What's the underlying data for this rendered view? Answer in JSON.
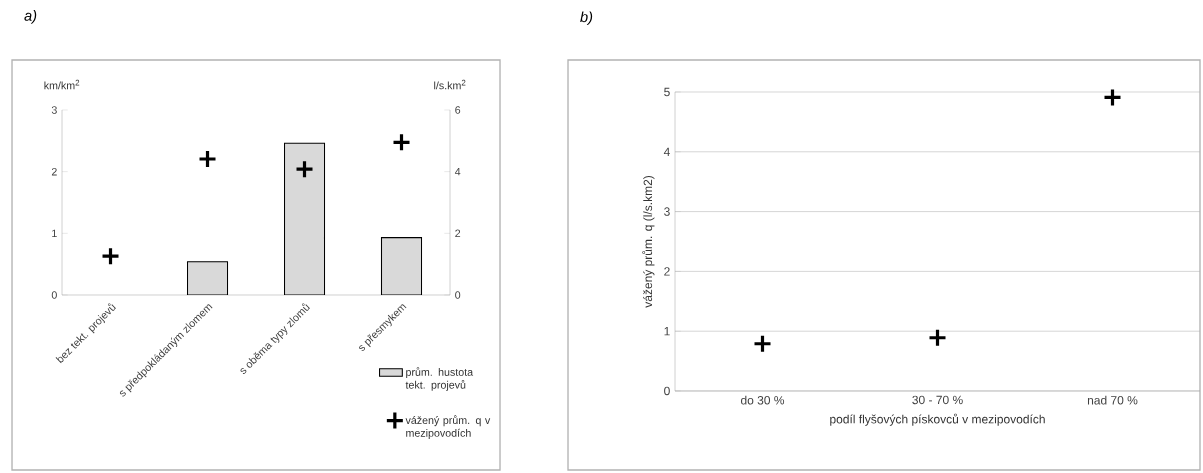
{
  "chart_data": [
    {
      "type": "bar",
      "title": "a)",
      "ylabel": "km/km$^{2}$",
      "y2label": "l/s.km$^{2}$",
      "categories": [
        "bez tekt. projevů",
        "s předpokládaným zlomem",
        "s oběma typy zlomů",
        "s přesmykem"
      ],
      "series": [
        {
          "name": "prům. hustota tekt. projevů",
          "color": "#d9d9d9",
          "values": [
            null,
            0.54,
            2.46,
            0.93
          ]
        },
        {
          "name": "vážený prům. q v mezipovodích",
          "type": "scatter",
          "axis": "y2",
          "color": "#000000",
          "values": [
            1.26,
            4.41,
            4.08,
            4.95
          ]
        }
      ],
      "ylim": [
        0,
        3
      ],
      "yticks": [
        0,
        1,
        2,
        3
      ],
      "y2lim": [
        0,
        6
      ],
      "y2ticks": [
        0,
        2,
        4,
        6
      ],
      "marker": "cross",
      "legend": "bottom right"
    },
    {
      "type": "scatter",
      "title": "b)",
      "xlabel": "podíl flyšových pískovců v mezipovodích",
      "ylabel": "vážený prům. q (l/s.km2)",
      "categories": [
        "do 30 %",
        "30 - 70 %",
        "nad 70 %"
      ],
      "values": [
        0.79,
        0.89,
        4.91
      ],
      "color": "#000000",
      "ylim": [
        0,
        5
      ],
      "yticks": [
        0,
        1,
        2,
        3,
        4,
        5
      ],
      "grid": "y",
      "marker": "cross"
    }
  ]
}
